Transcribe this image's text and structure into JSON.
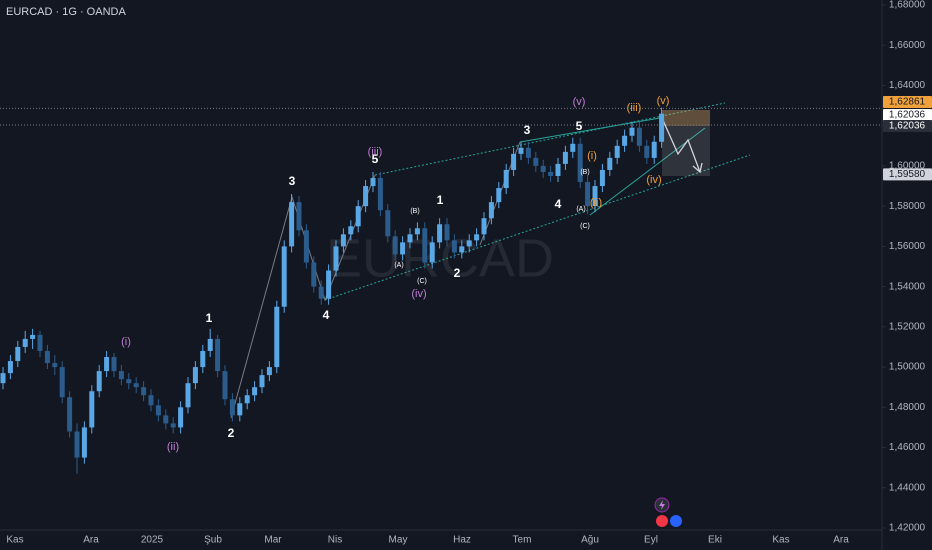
{
  "chart_data": {
    "type": "candlestick",
    "title": "EURCAD · 1G · OANDA",
    "watermark": "EURCAD",
    "up_color": "#5aa7e6",
    "down_color": "#2b5c8c",
    "ylim": [
      1.42,
      1.68
    ],
    "yticks": [
      {
        "value": 1.68,
        "label": "1,68000"
      },
      {
        "value": 1.66,
        "label": "1,66000"
      },
      {
        "value": 1.64,
        "label": "1,64000"
      },
      {
        "value": 1.62,
        "label": "1,62000"
      },
      {
        "value": 1.6,
        "label": "1,60000"
      },
      {
        "value": 1.58,
        "label": "1,58000"
      },
      {
        "value": 1.56,
        "label": "1,56000"
      },
      {
        "value": 1.54,
        "label": "1,54000"
      },
      {
        "value": 1.52,
        "label": "1,52000"
      },
      {
        "value": 1.5,
        "label": "1,50000"
      },
      {
        "value": 1.48,
        "label": "1,48000"
      },
      {
        "value": 1.46,
        "label": "1,46000"
      },
      {
        "value": 1.44,
        "label": "1,44000"
      },
      {
        "value": 1.42,
        "label": "1,42000"
      }
    ],
    "price_labels": [
      {
        "value": 1.62861,
        "label": "1,62861",
        "color": "#f0a13a",
        "text_color": "#131722"
      },
      {
        "value": 1.62036,
        "label": "1,62036",
        "color": "#ffffff",
        "text_color": "#131722"
      },
      {
        "value": 1.62036,
        "label": "1,62036",
        "color": "#2a2e39",
        "text_color": "#ffffff"
      },
      {
        "value": 1.5958,
        "label": "1,59580",
        "color": "#d1d4dc",
        "text_color": "#131722"
      }
    ],
    "months": [
      "Kas",
      "Ara",
      "2025",
      "Şub",
      "Mar",
      "Nis",
      "May",
      "Haz",
      "Tem",
      "Ağu",
      "Eyl",
      "Eki",
      "Kas",
      "Ara"
    ],
    "annotations": [
      {
        "text": "(v)",
        "color": "#c37ed6"
      },
      {
        "text": "(iii)",
        "color": "#f0a13a"
      },
      {
        "text": "(v)",
        "color": "#f0a13a"
      },
      {
        "text": "3",
        "color": "#ffffff"
      },
      {
        "text": "5",
        "color": "#ffffff"
      },
      {
        "text": "(iii)",
        "color": "#c37ed6"
      },
      {
        "text": "5",
        "color": "#ffffff"
      },
      {
        "text": "(i)",
        "color": "#f0a13a"
      },
      {
        "text": "(B)",
        "color": "#ffffff"
      },
      {
        "text": "3",
        "color": "#ffffff"
      },
      {
        "text": "1",
        "color": "#ffffff"
      },
      {
        "text": "(B)",
        "color": "#ffffff"
      },
      {
        "text": "4",
        "color": "#ffffff"
      },
      {
        "text": "(A)",
        "color": "#ffffff"
      },
      {
        "text": "(ii)",
        "color": "#f0a13a"
      },
      {
        "text": "(iv)",
        "color": "#f0a13a"
      },
      {
        "text": "(C)",
        "color": "#ffffff"
      },
      {
        "text": "(A)",
        "color": "#ffffff"
      },
      {
        "text": "2",
        "color": "#ffffff"
      },
      {
        "text": "(C)",
        "color": "#ffffff"
      },
      {
        "text": "(iv)",
        "color": "#c37ed6"
      },
      {
        "text": "4",
        "color": "#ffffff"
      },
      {
        "text": "1",
        "color": "#ffffff"
      },
      {
        "text": "(i)",
        "color": "#c37ed6"
      },
      {
        "text": "2",
        "color": "#ffffff"
      },
      {
        "text": "(ii)",
        "color": "#c37ed6"
      }
    ],
    "candles": [
      [
        1.492,
        1.5,
        1.489,
        1.497
      ],
      [
        1.497,
        1.506,
        1.494,
        1.503
      ],
      [
        1.503,
        1.513,
        1.5,
        1.51
      ],
      [
        1.51,
        1.518,
        1.507,
        1.514
      ],
      [
        1.514,
        1.519,
        1.509,
        1.516
      ],
      [
        1.516,
        1.518,
        1.505,
        1.508
      ],
      [
        1.508,
        1.511,
        1.499,
        1.502
      ],
      [
        1.502,
        1.506,
        1.496,
        1.5
      ],
      [
        1.5,
        1.503,
        1.482,
        1.485
      ],
      [
        1.485,
        1.488,
        1.465,
        1.468
      ],
      [
        1.468,
        1.472,
        1.447,
        1.455
      ],
      [
        1.455,
        1.473,
        1.452,
        1.47
      ],
      [
        1.47,
        1.491,
        1.467,
        1.488
      ],
      [
        1.488,
        1.501,
        1.485,
        1.498
      ],
      [
        1.498,
        1.508,
        1.495,
        1.505
      ],
      [
        1.505,
        1.507,
        1.495,
        1.498
      ],
      [
        1.498,
        1.501,
        1.491,
        1.494
      ],
      [
        1.494,
        1.497,
        1.489,
        1.492
      ],
      [
        1.492,
        1.495,
        1.487,
        1.49
      ],
      [
        1.49,
        1.493,
        1.483,
        1.486
      ],
      [
        1.486,
        1.489,
        1.478,
        1.481
      ],
      [
        1.481,
        1.484,
        1.473,
        1.476
      ],
      [
        1.476,
        1.479,
        1.469,
        1.472
      ],
      [
        1.472,
        1.475,
        1.467,
        1.47
      ],
      [
        1.47,
        1.483,
        1.467,
        1.48
      ],
      [
        1.48,
        1.495,
        1.477,
        1.492
      ],
      [
        1.492,
        1.503,
        1.489,
        1.5
      ],
      [
        1.5,
        1.511,
        1.497,
        1.508
      ],
      [
        1.508,
        1.519,
        1.505,
        1.514
      ],
      [
        1.514,
        1.516,
        1.495,
        1.498
      ],
      [
        1.498,
        1.501,
        1.481,
        1.484
      ],
      [
        1.484,
        1.487,
        1.473,
        1.476
      ],
      [
        1.476,
        1.485,
        1.473,
        1.482
      ],
      [
        1.482,
        1.489,
        1.479,
        1.486
      ],
      [
        1.486,
        1.493,
        1.483,
        1.49
      ],
      [
        1.49,
        1.499,
        1.487,
        1.496
      ],
      [
        1.496,
        1.503,
        1.493,
        1.5
      ],
      [
        1.5,
        1.533,
        1.497,
        1.53
      ],
      [
        1.53,
        1.563,
        1.527,
        1.56
      ],
      [
        1.56,
        1.586,
        1.557,
        1.582
      ],
      [
        1.582,
        1.585,
        1.565,
        1.568
      ],
      [
        1.568,
        1.571,
        1.549,
        1.552
      ],
      [
        1.552,
        1.555,
        1.537,
        1.54
      ],
      [
        1.54,
        1.543,
        1.531,
        1.534
      ],
      [
        1.534,
        1.551,
        1.531,
        1.548
      ],
      [
        1.548,
        1.563,
        1.545,
        1.56
      ],
      [
        1.56,
        1.569,
        1.557,
        1.566
      ],
      [
        1.566,
        1.573,
        1.563,
        1.57
      ],
      [
        1.57,
        1.583,
        1.567,
        1.58
      ],
      [
        1.58,
        1.593,
        1.577,
        1.59
      ],
      [
        1.59,
        1.597,
        1.587,
        1.594
      ],
      [
        1.594,
        1.597,
        1.575,
        1.578
      ],
      [
        1.578,
        1.581,
        1.562,
        1.565
      ],
      [
        1.565,
        1.568,
        1.553,
        1.556
      ],
      [
        1.556,
        1.565,
        1.553,
        1.562
      ],
      [
        1.562,
        1.569,
        1.559,
        1.566
      ],
      [
        1.566,
        1.572,
        1.563,
        1.569
      ],
      [
        1.569,
        1.572,
        1.549,
        1.552
      ],
      [
        1.552,
        1.565,
        1.549,
        1.562
      ],
      [
        1.562,
        1.574,
        1.559,
        1.571
      ],
      [
        1.571,
        1.574,
        1.56,
        1.563
      ],
      [
        1.563,
        1.566,
        1.554,
        1.557
      ],
      [
        1.557,
        1.563,
        1.554,
        1.56
      ],
      [
        1.56,
        1.566,
        1.557,
        1.563
      ],
      [
        1.563,
        1.569,
        1.56,
        1.566
      ],
      [
        1.566,
        1.577,
        1.563,
        1.574
      ],
      [
        1.574,
        1.585,
        1.571,
        1.582
      ],
      [
        1.582,
        1.592,
        1.579,
        1.589
      ],
      [
        1.589,
        1.601,
        1.586,
        1.598
      ],
      [
        1.598,
        1.609,
        1.595,
        1.606
      ],
      [
        1.606,
        1.612,
        1.603,
        1.609
      ],
      [
        1.609,
        1.612,
        1.601,
        1.604
      ],
      [
        1.604,
        1.607,
        1.597,
        1.6
      ],
      [
        1.6,
        1.603,
        1.594,
        1.597
      ],
      [
        1.597,
        1.6,
        1.592,
        1.595
      ],
      [
        1.595,
        1.604,
        1.592,
        1.601
      ],
      [
        1.601,
        1.61,
        1.598,
        1.607
      ],
      [
        1.607,
        1.614,
        1.604,
        1.611
      ],
      [
        1.611,
        1.614,
        1.589,
        1.592
      ],
      [
        1.592,
        1.595,
        1.576,
        1.58
      ],
      [
        1.58,
        1.593,
        1.577,
        1.59
      ],
      [
        1.59,
        1.601,
        1.587,
        1.598
      ],
      [
        1.598,
        1.607,
        1.595,
        1.604
      ],
      [
        1.604,
        1.613,
        1.601,
        1.61
      ],
      [
        1.61,
        1.618,
        1.607,
        1.615
      ],
      [
        1.615,
        1.622,
        1.612,
        1.619
      ],
      [
        1.619,
        1.622,
        1.607,
        1.61
      ],
      [
        1.61,
        1.613,
        1.601,
        1.604
      ],
      [
        1.604,
        1.615,
        1.601,
        1.612
      ],
      [
        1.612,
        1.629,
        1.609,
        1.626
      ]
    ]
  }
}
